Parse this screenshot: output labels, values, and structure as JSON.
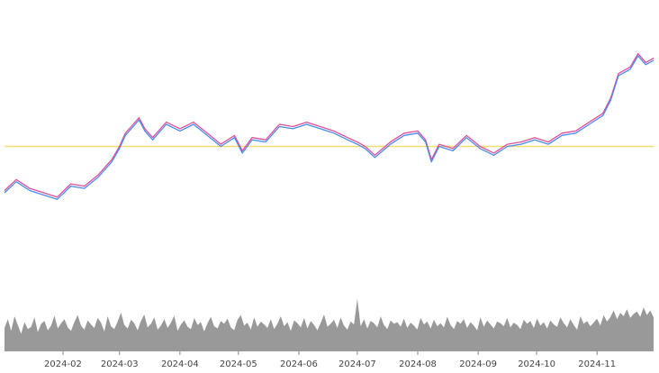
{
  "colors": {
    "background": "#ffffff",
    "series_a": "#e0509a",
    "series_b": "#4a8cf0",
    "series_mid": "#8f62ea",
    "reference_line": "#f5dc6c",
    "volume": "#999999",
    "tick_label": "#444444"
  },
  "chart_data": {
    "type": "line",
    "x_type": "date",
    "x_tick_labels": [
      "2024-02",
      "2024-03",
      "2024-04",
      "2024-05",
      "2024-06",
      "2024-07",
      "2024-08",
      "2024-09",
      "2024-10",
      "2024-11"
    ],
    "x_ticks": [
      "2024-02-01",
      "2024-03-01",
      "2024-04-01",
      "2024-05-01",
      "2024-06-01",
      "2024-07-01",
      "2024-08-01",
      "2024-09-01",
      "2024-10-01",
      "2024-11-01"
    ],
    "x_range": [
      "2024-01-02",
      "2024-11-30"
    ],
    "y_range": [
      0,
      100
    ],
    "reference_line": 50,
    "grid": false,
    "legend": "none",
    "series": [
      {
        "color": "#e0509a",
        "points": [
          [
            "2024-01-02",
            30
          ],
          [
            "2024-01-08",
            35
          ],
          [
            "2024-01-15",
            31
          ],
          [
            "2024-01-22",
            29
          ],
          [
            "2024-01-29",
            27
          ],
          [
            "2024-02-05",
            33
          ],
          [
            "2024-02-12",
            32
          ],
          [
            "2024-02-19",
            37
          ],
          [
            "2024-02-26",
            44
          ],
          [
            "2024-03-01",
            50
          ],
          [
            "2024-03-04",
            56
          ],
          [
            "2024-03-07",
            59
          ],
          [
            "2024-03-11",
            63
          ],
          [
            "2024-03-14",
            58
          ],
          [
            "2024-03-18",
            54
          ],
          [
            "2024-03-25",
            61
          ],
          [
            "2024-04-01",
            58
          ],
          [
            "2024-04-08",
            61
          ],
          [
            "2024-04-15",
            56
          ],
          [
            "2024-04-22",
            51
          ],
          [
            "2024-04-29",
            55
          ],
          [
            "2024-05-03",
            48
          ],
          [
            "2024-05-08",
            54
          ],
          [
            "2024-05-15",
            53
          ],
          [
            "2024-05-22",
            60
          ],
          [
            "2024-05-29",
            59
          ],
          [
            "2024-06-05",
            61
          ],
          [
            "2024-06-12",
            59
          ],
          [
            "2024-06-19",
            57
          ],
          [
            "2024-06-26",
            54
          ],
          [
            "2024-07-01",
            52
          ],
          [
            "2024-07-05",
            50
          ],
          [
            "2024-07-10",
            46
          ],
          [
            "2024-07-18",
            52
          ],
          [
            "2024-07-25",
            56
          ],
          [
            "2024-08-01",
            57
          ],
          [
            "2024-08-05",
            53
          ],
          [
            "2024-08-08",
            44
          ],
          [
            "2024-08-12",
            51
          ],
          [
            "2024-08-19",
            49
          ],
          [
            "2024-08-26",
            55
          ],
          [
            "2024-09-02",
            50
          ],
          [
            "2024-09-09",
            47
          ],
          [
            "2024-09-16",
            51
          ],
          [
            "2024-09-23",
            52
          ],
          [
            "2024-09-30",
            54
          ],
          [
            "2024-10-07",
            52
          ],
          [
            "2024-10-14",
            56
          ],
          [
            "2024-10-21",
            57
          ],
          [
            "2024-10-28",
            61
          ],
          [
            "2024-11-04",
            65
          ],
          [
            "2024-11-08",
            72
          ],
          [
            "2024-11-12",
            83
          ],
          [
            "2024-11-18",
            86
          ],
          [
            "2024-11-22",
            92
          ],
          [
            "2024-11-26",
            88
          ],
          [
            "2024-11-30",
            90
          ]
        ]
      },
      {
        "color": "#4a8cf0",
        "points": [
          [
            "2024-01-02",
            29
          ],
          [
            "2024-01-08",
            34
          ],
          [
            "2024-01-15",
            30
          ],
          [
            "2024-01-22",
            28
          ],
          [
            "2024-01-29",
            26
          ],
          [
            "2024-02-05",
            32
          ],
          [
            "2024-02-12",
            31
          ],
          [
            "2024-02-19",
            36
          ],
          [
            "2024-02-26",
            43
          ],
          [
            "2024-03-01",
            49
          ],
          [
            "2024-03-04",
            55
          ],
          [
            "2024-03-07",
            58
          ],
          [
            "2024-03-11",
            62
          ],
          [
            "2024-03-14",
            57
          ],
          [
            "2024-03-18",
            53
          ],
          [
            "2024-03-25",
            60
          ],
          [
            "2024-04-01",
            57
          ],
          [
            "2024-04-08",
            60
          ],
          [
            "2024-04-15",
            55
          ],
          [
            "2024-04-22",
            50
          ],
          [
            "2024-04-29",
            54
          ],
          [
            "2024-05-03",
            47
          ],
          [
            "2024-05-08",
            53
          ],
          [
            "2024-05-15",
            52
          ],
          [
            "2024-05-22",
            59
          ],
          [
            "2024-05-29",
            58
          ],
          [
            "2024-06-05",
            60
          ],
          [
            "2024-06-12",
            58
          ],
          [
            "2024-06-19",
            56
          ],
          [
            "2024-06-26",
            53
          ],
          [
            "2024-07-01",
            51
          ],
          [
            "2024-07-05",
            49
          ],
          [
            "2024-07-10",
            45
          ],
          [
            "2024-07-18",
            51
          ],
          [
            "2024-07-25",
            55
          ],
          [
            "2024-08-01",
            56
          ],
          [
            "2024-08-05",
            52
          ],
          [
            "2024-08-08",
            43
          ],
          [
            "2024-08-12",
            50
          ],
          [
            "2024-08-19",
            48
          ],
          [
            "2024-08-26",
            54
          ],
          [
            "2024-09-02",
            49
          ],
          [
            "2024-09-09",
            46
          ],
          [
            "2024-09-16",
            50
          ],
          [
            "2024-09-23",
            51
          ],
          [
            "2024-09-30",
            53
          ],
          [
            "2024-10-07",
            51
          ],
          [
            "2024-10-14",
            55
          ],
          [
            "2024-10-21",
            56
          ],
          [
            "2024-10-28",
            60
          ],
          [
            "2024-11-04",
            64
          ],
          [
            "2024-11-08",
            71
          ],
          [
            "2024-11-12",
            82
          ],
          [
            "2024-11-18",
            85
          ],
          [
            "2024-11-22",
            91
          ],
          [
            "2024-11-26",
            87
          ],
          [
            "2024-11-30",
            89
          ]
        ]
      }
    ],
    "volume": {
      "color": "#999999",
      "y_range": [
        0,
        100
      ],
      "values": [
        40,
        55,
        35,
        60,
        45,
        30,
        50,
        38,
        42,
        58,
        33,
        47,
        52,
        36,
        44,
        61,
        39,
        48,
        55,
        41,
        35,
        50,
        62,
        44,
        37,
        53,
        46,
        40,
        57,
        49,
        34,
        60,
        43,
        38,
        51,
        66,
        45,
        39,
        54,
        48,
        36,
        52,
        63,
        41,
        47,
        58,
        37,
        44,
        55,
        40,
        49,
        61,
        35,
        46,
        53,
        42,
        38,
        57,
        45,
        50,
        34,
        48,
        59,
        43,
        39,
        52,
        47,
        56,
        41,
        36,
        54,
        62,
        44,
        49,
        37,
        58,
        42,
        51,
        46,
        40,
        55,
        38,
        47,
        60,
        43,
        50,
        35,
        53,
        48,
        41,
        57,
        39,
        52,
        45,
        36,
        49,
        63,
        42,
        47,
        54,
        40,
        58,
        44,
        37,
        51,
        46,
        90,
        43,
        55,
        39,
        52,
        48,
        41,
        60,
        45,
        38,
        53,
        47,
        50,
        42,
        56,
        40,
        49,
        44,
        37,
        57,
        46,
        51,
        39,
        54,
        43,
        48,
        41,
        59,
        45,
        38,
        52,
        47,
        55,
        40,
        50,
        44,
        36,
        58,
        42,
        53,
        46,
        39,
        51,
        48,
        43,
        57,
        41,
        49,
        45,
        38,
        54,
        47,
        52,
        40,
        56,
        44,
        50,
        39,
        53,
        46,
        42,
        58,
        48,
        41,
        55,
        45,
        37,
        60,
        47,
        52,
        43,
        49,
        56,
        44,
        62,
        51,
        58,
        70,
        55,
        66,
        60,
        72,
        57,
        64,
        68,
        59,
        75,
        62,
        70,
        58
      ]
    }
  }
}
